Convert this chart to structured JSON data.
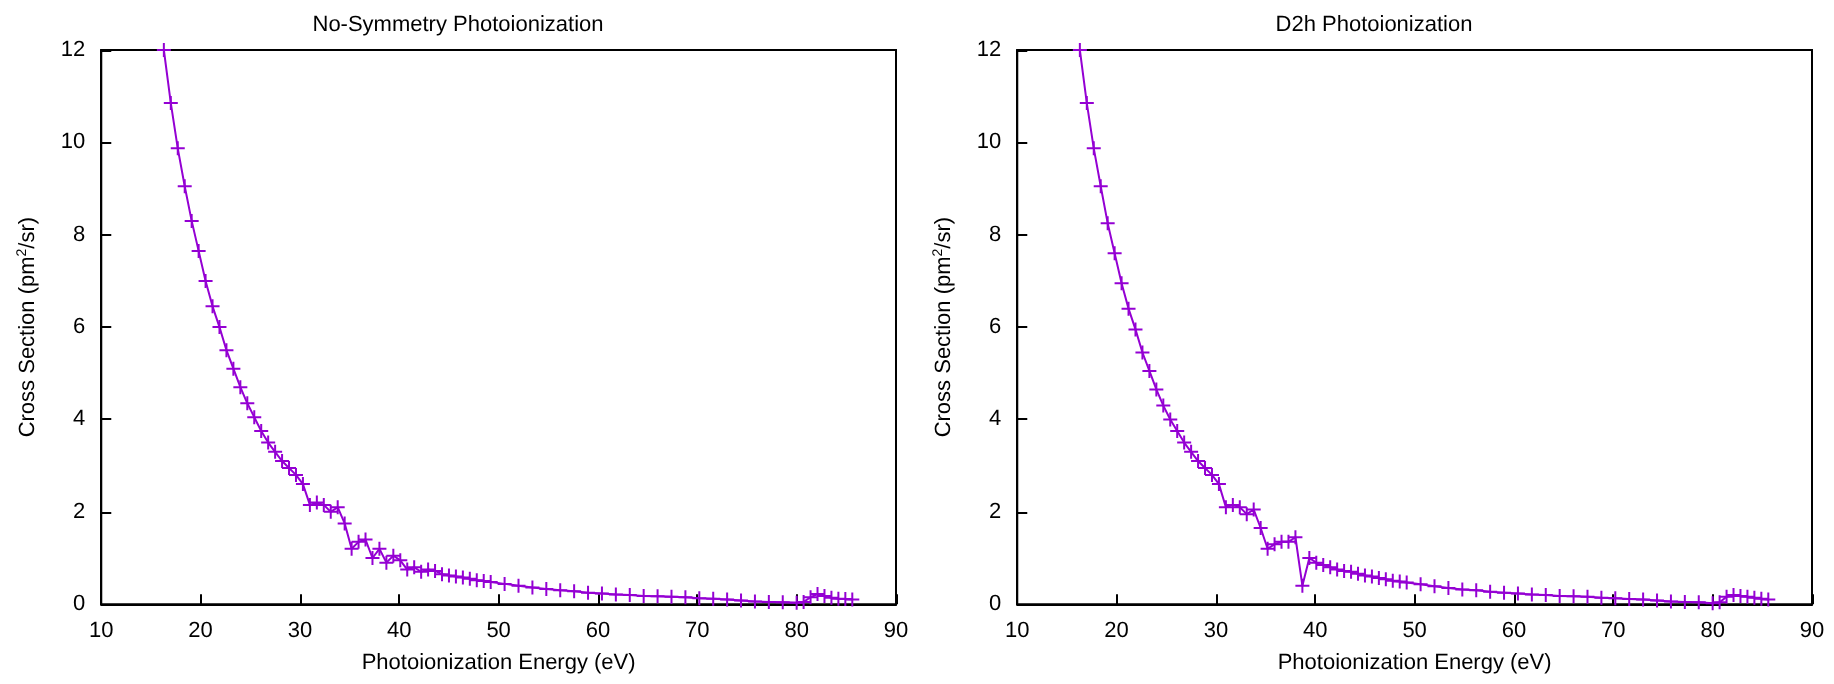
{
  "chart_data": [
    {
      "type": "line",
      "title": "No-Symmetry Photoionization",
      "xlabel": "Photoionization Energy (eV)",
      "ylabel": "Cross Section (pm$^{2}$/sr)",
      "xlim": [
        10,
        90
      ],
      "xticks": [
        10,
        20,
        30,
        40,
        50,
        60,
        70,
        80,
        90
      ],
      "ylim": [
        0,
        12
      ],
      "yticks": [
        0,
        2,
        4,
        6,
        8,
        10,
        12
      ],
      "grid": false,
      "marker": "cross",
      "line_style": "solid",
      "series": [
        {
          "color": "#9400d3",
          "x": [
            16.3,
            17.0,
            17.7,
            18.4,
            19.1,
            19.8,
            20.5,
            21.2,
            21.9,
            22.6,
            23.3,
            24.0,
            24.7,
            25.4,
            26.1,
            26.8,
            27.5,
            28.2,
            28.9,
            29.6,
            30.3,
            31.0,
            31.7,
            32.4,
            33.1,
            33.8,
            34.5,
            35.2,
            35.9,
            36.6,
            37.3,
            38.0,
            38.7,
            39.4,
            40.1,
            40.8,
            41.5,
            42.2,
            42.9,
            43.6,
            44.3,
            45.0,
            45.7,
            46.4,
            47.1,
            47.8,
            48.5,
            49.2,
            50.6,
            52.0,
            53.4,
            54.8,
            56.2,
            57.6,
            59.0,
            60.4,
            61.8,
            63.2,
            64.6,
            66.0,
            67.4,
            68.8,
            70.2,
            71.6,
            73.0,
            74.4,
            75.8,
            77.2,
            78.6,
            80.0,
            80.7,
            81.4,
            82.1,
            82.8,
            83.5,
            84.2,
            84.9,
            85.6
          ],
          "values": [
            12.0,
            10.85,
            9.87,
            9.05,
            8.3,
            7.65,
            7.0,
            6.45,
            6.0,
            5.5,
            5.1,
            4.7,
            4.35,
            4.05,
            3.75,
            3.5,
            3.3,
            3.1,
            2.95,
            2.8,
            2.6,
            2.15,
            2.2,
            2.15,
            2.0,
            2.1,
            1.75,
            1.2,
            1.35,
            1.4,
            1.0,
            1.2,
            0.9,
            1.05,
            0.95,
            0.75,
            0.8,
            0.7,
            0.75,
            0.72,
            0.65,
            0.62,
            0.6,
            0.58,
            0.55,
            0.52,
            0.5,
            0.48,
            0.44,
            0.4,
            0.36,
            0.33,
            0.3,
            0.28,
            0.25,
            0.23,
            0.21,
            0.2,
            0.18,
            0.17,
            0.16,
            0.15,
            0.13,
            0.12,
            0.1,
            0.08,
            0.06,
            0.05,
            0.04,
            0.03,
            0.05,
            0.15,
            0.22,
            0.18,
            0.14,
            0.12,
            0.11,
            0.1
          ]
        }
      ]
    },
    {
      "type": "line",
      "title": "D2h Photoionization",
      "xlabel": "Photoionization Energy (eV)",
      "ylabel": "Cross Section (pm$^{2}$/sr)",
      "xlim": [
        10,
        90
      ],
      "xticks": [
        10,
        20,
        30,
        40,
        50,
        60,
        70,
        80,
        90
      ],
      "ylim": [
        0,
        12
      ],
      "yticks": [
        0,
        2,
        4,
        6,
        8,
        10,
        12
      ],
      "grid": false,
      "marker": "cross",
      "line_style": "solid",
      "series": [
        {
          "color": "#9400d3",
          "x": [
            16.3,
            17.0,
            17.7,
            18.4,
            19.1,
            19.8,
            20.5,
            21.2,
            21.9,
            22.6,
            23.3,
            24.0,
            24.7,
            25.4,
            26.1,
            26.8,
            27.5,
            28.2,
            28.9,
            29.6,
            30.3,
            31.0,
            31.7,
            32.4,
            33.1,
            33.8,
            34.5,
            35.2,
            35.9,
            36.6,
            37.3,
            38.0,
            38.7,
            39.4,
            40.1,
            40.8,
            41.5,
            42.2,
            42.9,
            43.6,
            44.3,
            45.0,
            45.7,
            46.4,
            47.1,
            47.8,
            48.5,
            49.2,
            50.6,
            52.0,
            53.4,
            54.8,
            56.2,
            57.6,
            59.0,
            60.4,
            61.8,
            63.2,
            64.6,
            66.0,
            67.4,
            68.8,
            70.2,
            71.6,
            73.0,
            74.4,
            75.8,
            77.2,
            78.6,
            80.0,
            80.7,
            81.4,
            82.1,
            82.8,
            83.5,
            84.2,
            84.9,
            85.6
          ],
          "values": [
            12.0,
            10.85,
            9.87,
            9.05,
            8.25,
            7.6,
            6.95,
            6.4,
            5.95,
            5.45,
            5.05,
            4.65,
            4.3,
            4.0,
            3.75,
            3.5,
            3.3,
            3.1,
            2.95,
            2.8,
            2.6,
            2.1,
            2.15,
            2.1,
            1.95,
            2.05,
            1.65,
            1.2,
            1.3,
            1.35,
            1.35,
            1.45,
            0.4,
            1.0,
            0.9,
            0.85,
            0.8,
            0.75,
            0.72,
            0.7,
            0.66,
            0.62,
            0.6,
            0.57,
            0.54,
            0.51,
            0.49,
            0.47,
            0.43,
            0.39,
            0.35,
            0.32,
            0.3,
            0.27,
            0.25,
            0.23,
            0.21,
            0.2,
            0.18,
            0.17,
            0.16,
            0.14,
            0.13,
            0.11,
            0.1,
            0.08,
            0.06,
            0.05,
            0.04,
            0.02,
            0.04,
            0.16,
            0.2,
            0.18,
            0.16,
            0.14,
            0.12,
            0.1
          ]
        }
      ]
    }
  ]
}
